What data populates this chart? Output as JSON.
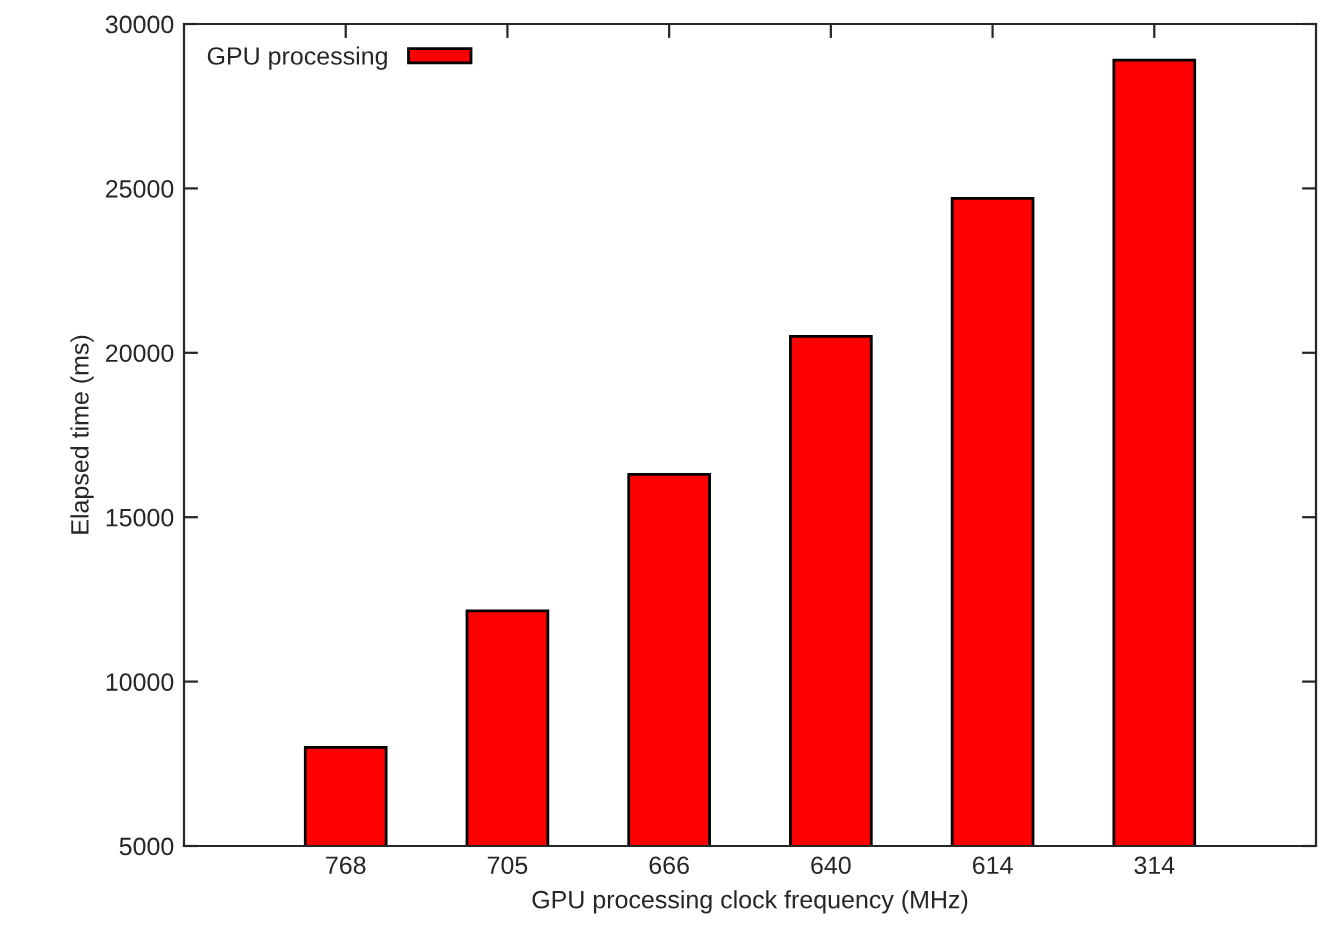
{
  "chart_data": {
    "type": "bar",
    "xlabel": "GPU processing clock frequency (MHz)",
    "ylabel": "Elapsed time (ms)",
    "categories": [
      "768",
      "705",
      "666",
      "640",
      "614",
      "314"
    ],
    "series": [
      {
        "name": "GPU processing",
        "color": "#ff0000",
        "values": [
          8000,
          12150,
          16300,
          20500,
          24700,
          28900
        ]
      }
    ],
    "ylim": [
      5000,
      30000
    ],
    "yticks": [
      5000,
      10000,
      15000,
      20000,
      25000,
      30000
    ],
    "grid": false,
    "legend": "top left"
  }
}
